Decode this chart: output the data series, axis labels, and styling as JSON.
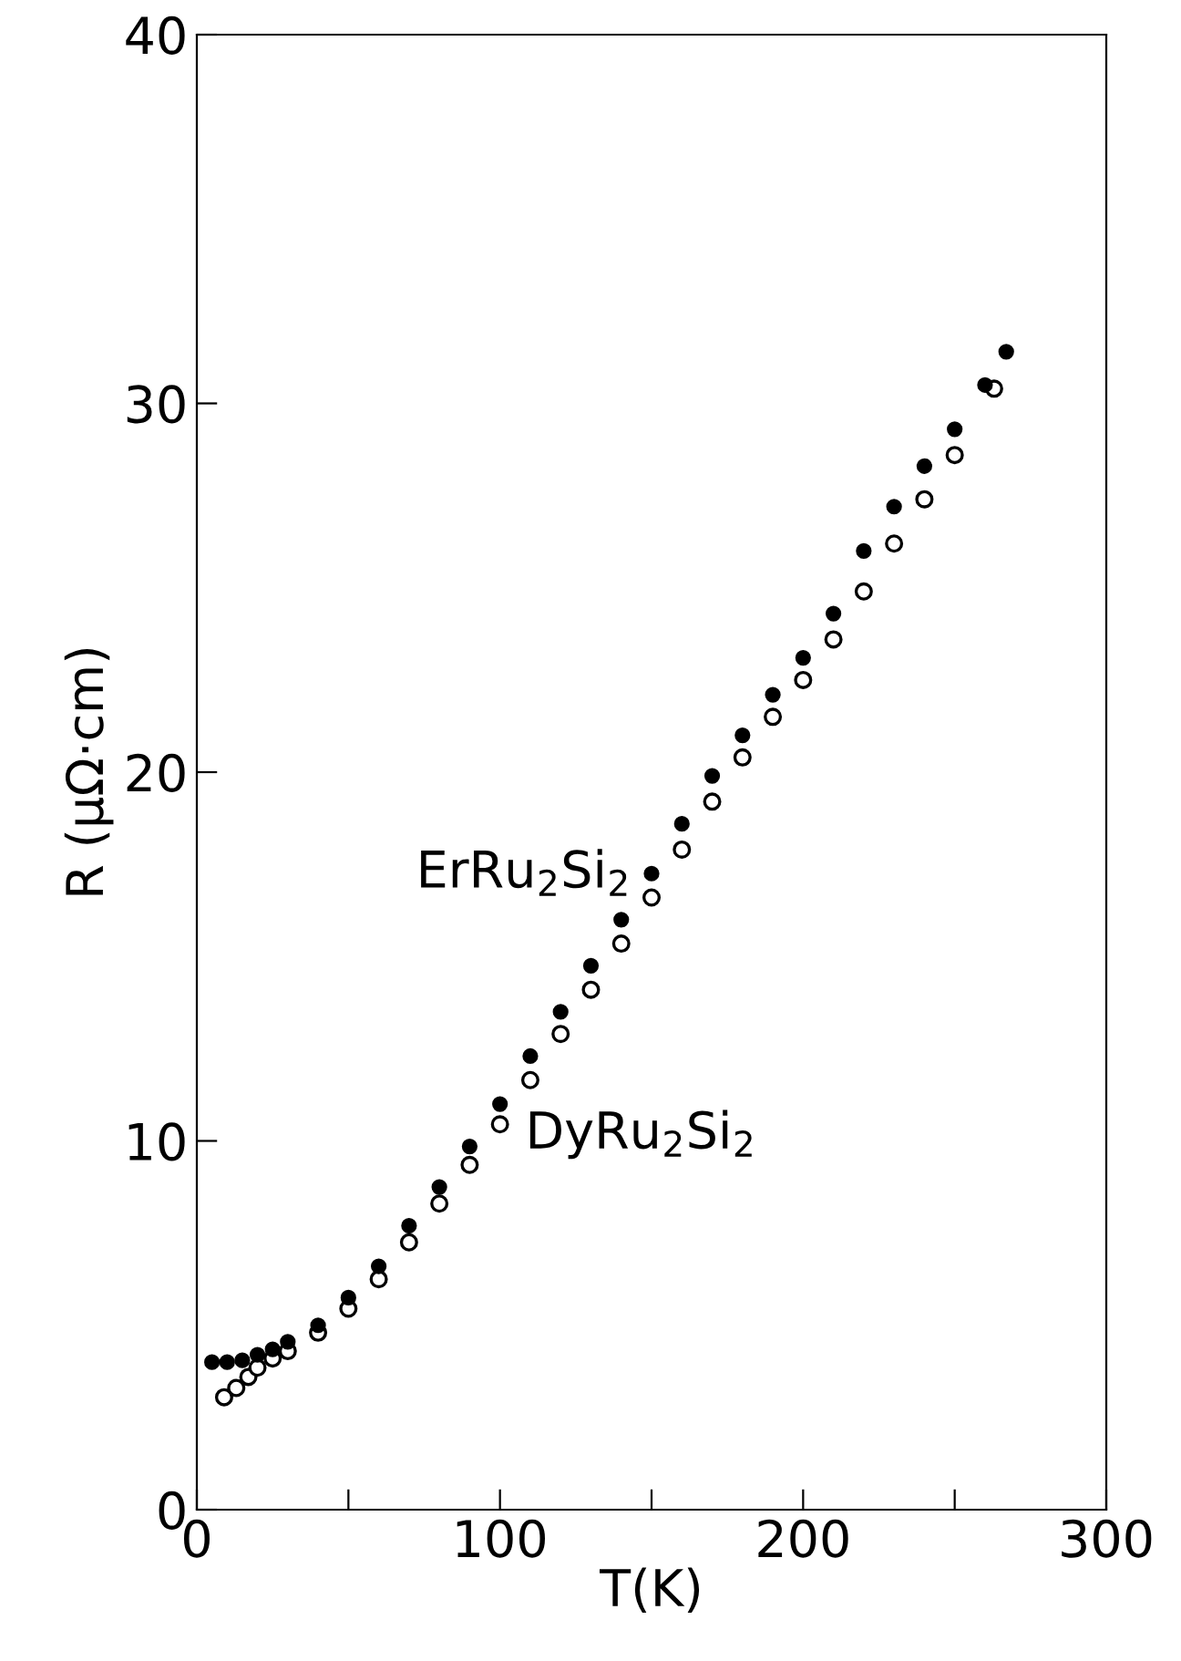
{
  "chart_data": {
    "type": "scatter",
    "xlabel": "T(K)",
    "ylabel": "R (μΩ·cm)",
    "xlim": [
      0,
      300
    ],
    "xticks": [
      0,
      {
        "value": 50,
        "label": null
      },
      100,
      {
        "value": 150,
        "label": null
      },
      200,
      {
        "value": 250,
        "label": null
      },
      300
    ],
    "ylim": [
      0,
      40
    ],
    "yticks": [
      0,
      10,
      20,
      30,
      40
    ],
    "grid": false,
    "legend": false,
    "series": [
      {
        "name": "ErRu$_{2}$Si$_{2}$",
        "color": "#000000",
        "marker": "circle",
        "x": [
          5,
          10,
          15,
          20,
          25,
          30,
          40,
          50,
          60,
          70,
          80,
          90,
          100,
          110,
          120,
          130,
          140,
          150,
          160,
          170,
          180,
          190,
          200,
          210,
          220,
          230,
          240,
          250,
          260,
          267
        ],
        "values": [
          4.0,
          4.0,
          4.05,
          4.2,
          4.35,
          4.55,
          5.0,
          5.75,
          6.6,
          7.7,
          8.75,
          9.85,
          11.0,
          12.3,
          13.5,
          14.75,
          16.0,
          17.25,
          18.6,
          19.9,
          21.0,
          22.1,
          23.1,
          24.3,
          26.0,
          27.2,
          28.3,
          29.3,
          30.5,
          31.4
        ]
      },
      {
        "name": "DyRu$_{2}$Si$_{2}$",
        "color": "#000000",
        "marker": "circle",
        "x": [
          9,
          13,
          17,
          20,
          25,
          30,
          40,
          50,
          60,
          70,
          80,
          90,
          100,
          110,
          120,
          130,
          140,
          150,
          160,
          170,
          180,
          190,
          200,
          210,
          220,
          230,
          240,
          250,
          263
        ],
        "values": [
          3.05,
          3.3,
          3.6,
          3.85,
          4.1,
          4.3,
          4.8,
          5.45,
          6.25,
          7.25,
          8.3,
          9.35,
          10.45,
          11.65,
          12.9,
          14.1,
          15.35,
          16.6,
          17.9,
          19.2,
          20.4,
          21.5,
          22.5,
          23.6,
          24.9,
          26.2,
          27.4,
          28.6,
          30.4
        ]
      }
    ]
  }
}
